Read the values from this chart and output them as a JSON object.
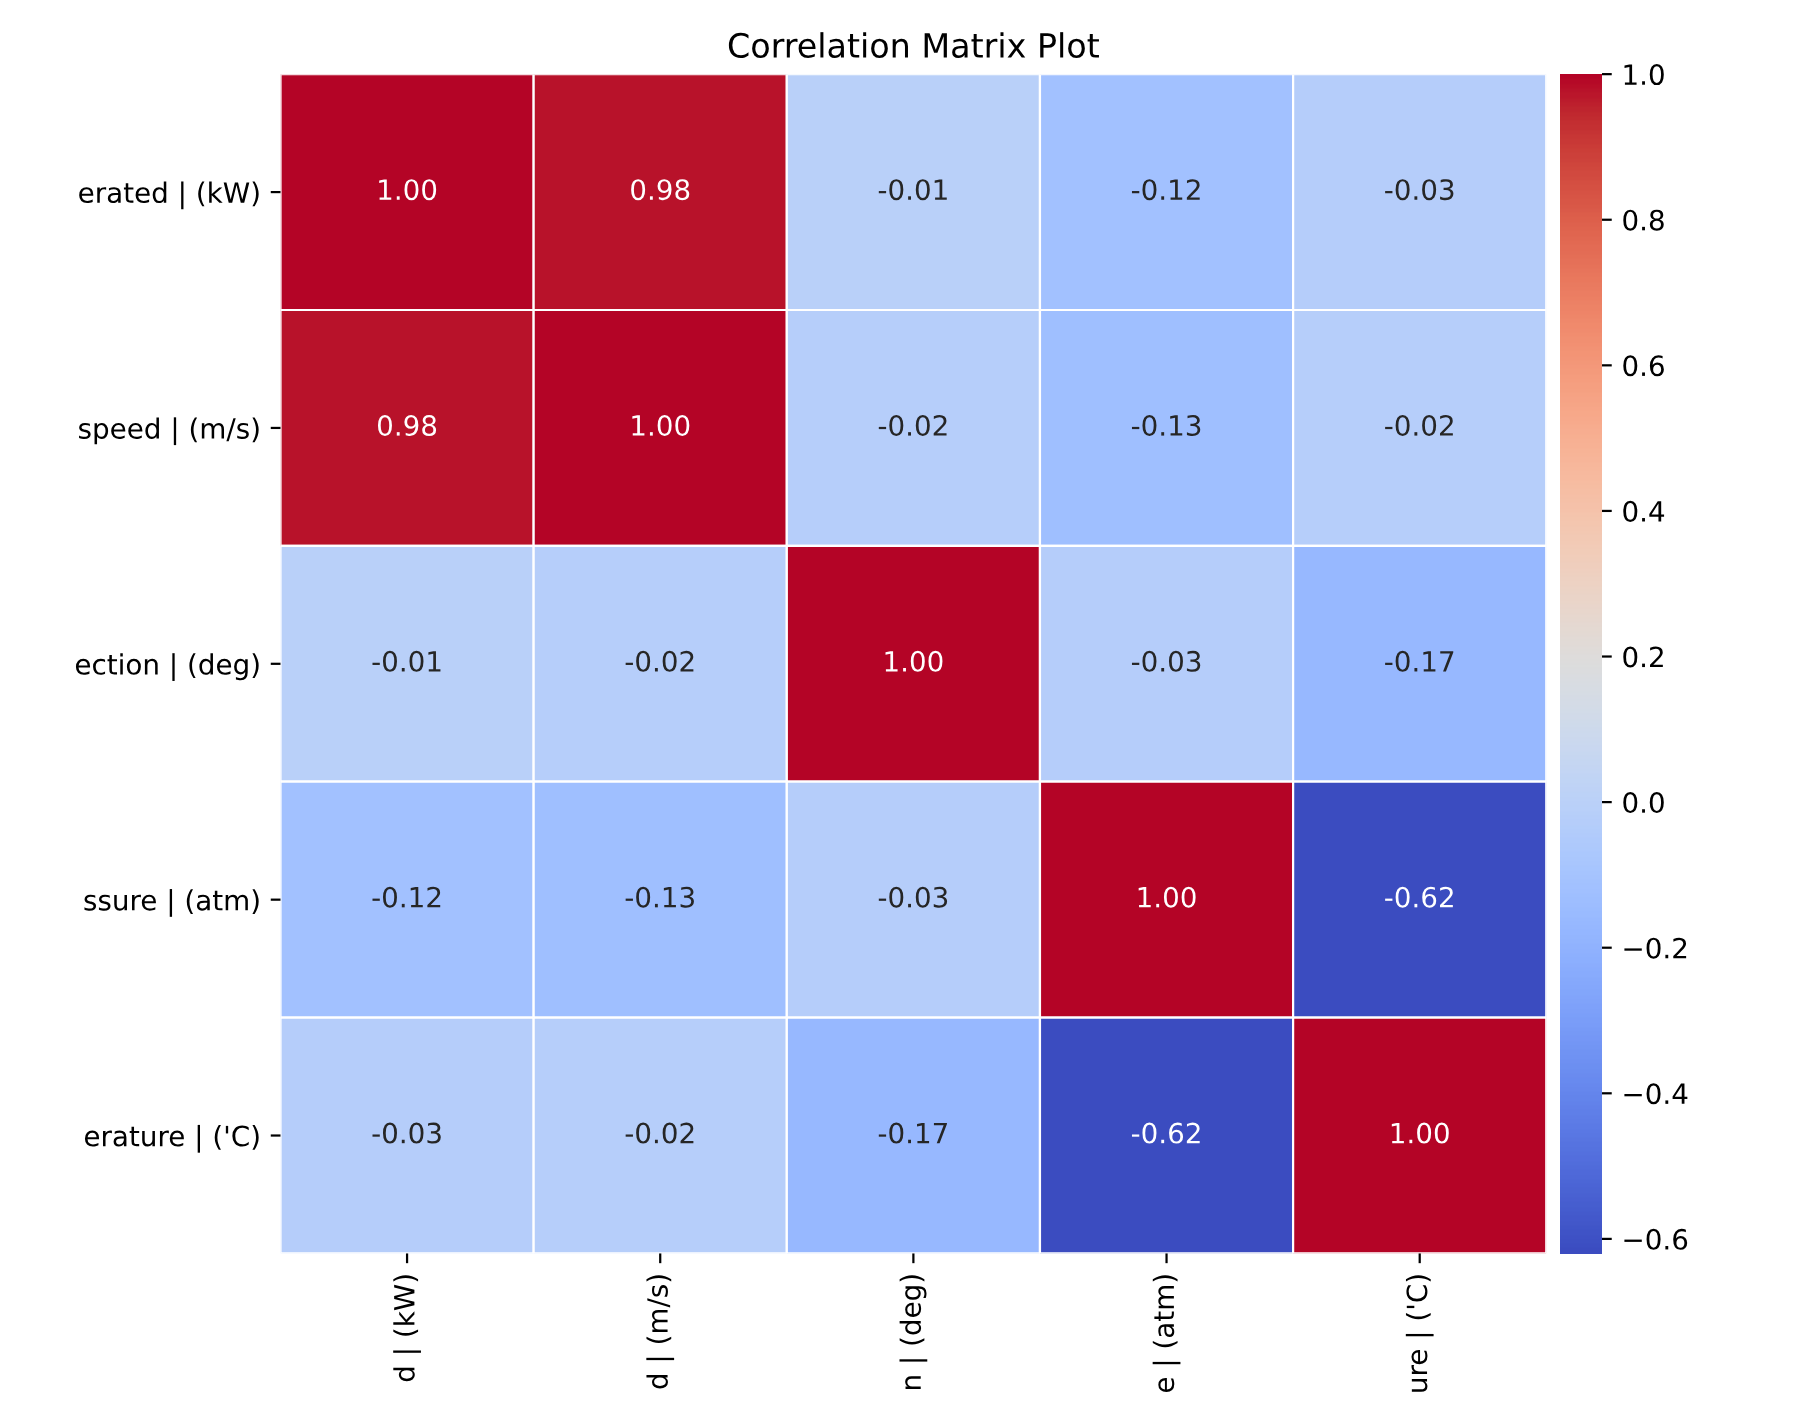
{
  "chart_data": {
    "type": "heatmap",
    "title": "Correlation Matrix Plot",
    "categories": [
      "d | (kW)",
      "d | (m/s)",
      "n | (deg)",
      "e | (atm)",
      "ure | ('C)"
    ],
    "y_categories": [
      "erated | (kW)",
      "speed | (m/s)",
      "ection | (deg)",
      "ssure | (atm)",
      "erature | ('C)"
    ],
    "cells": [
      [
        1.0,
        0.98,
        -0.01,
        -0.12,
        -0.03
      ],
      [
        0.98,
        1.0,
        -0.02,
        -0.13,
        -0.02
      ],
      [
        -0.01,
        -0.02,
        1.0,
        -0.03,
        -0.17
      ],
      [
        -0.12,
        -0.13,
        -0.03,
        1.0,
        -0.62
      ],
      [
        -0.03,
        -0.02,
        -0.17,
        -0.62,
        1.0
      ]
    ],
    "cell_labels": [
      [
        "1.00",
        "0.98",
        "-0.01",
        "-0.12",
        "-0.03"
      ],
      [
        "0.98",
        "1.00",
        "-0.02",
        "-0.13",
        "-0.02"
      ],
      [
        "-0.01",
        "-0.02",
        "1.00",
        "-0.03",
        "-0.17"
      ],
      [
        "-0.12",
        "-0.13",
        "-0.03",
        "1.00",
        "-0.62"
      ],
      [
        "-0.03",
        "-0.02",
        "-0.17",
        "-0.62",
        "1.00"
      ]
    ],
    "clim": [
      -0.62,
      1.0
    ],
    "cticks": [
      {
        "value": -0.6,
        "label": "−0.6"
      },
      {
        "value": -0.4,
        "label": "−0.4"
      },
      {
        "value": -0.2,
        "label": "−0.2"
      },
      {
        "value": 0,
        "label": "0.0"
      },
      0.2,
      0.4,
      0.6,
      0.8,
      {
        "value": 1,
        "label": "1.0"
      }
    ]
  }
}
